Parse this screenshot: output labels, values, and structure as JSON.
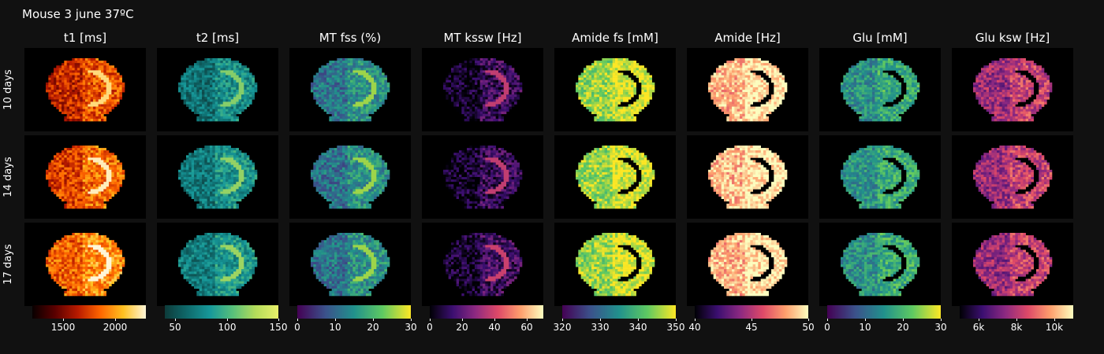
{
  "title": "Mouse 3 june 37ºC",
  "chart_data": {
    "type": "heatmap",
    "title": "Mouse 3 june 37ºC",
    "rows": [
      "10 days",
      "14 days",
      "17 days"
    ],
    "columns": [
      {
        "name": "t1 [ms]",
        "colormap": "hot",
        "range": [
          1200,
          2300
        ],
        "ticks": [
          "1500",
          "2000"
        ],
        "tick_values": [
          1500,
          2000
        ],
        "colors": [
          "#080000",
          "#5a0000",
          "#b81a00",
          "#ff6600",
          "#ffc020",
          "#fff6d8"
        ]
      },
      {
        "name": "t2 [ms]",
        "colormap": "viridis",
        "range": [
          40,
          150
        ],
        "ticks": [
          "50",
          "100",
          "150"
        ],
        "tick_values": [
          50,
          100,
          150
        ],
        "colors": [
          "#0d3b3a",
          "#0f6a6c",
          "#17999a",
          "#58c07a",
          "#b4dc5a",
          "#e8f06a"
        ]
      },
      {
        "name": "MT fss (%)",
        "colormap": "viridis",
        "range": [
          0,
          30
        ],
        "ticks": [
          "0",
          "10",
          "20",
          "30"
        ],
        "tick_values": [
          0,
          10,
          20,
          30
        ],
        "colors": [
          "#440154",
          "#3b528b",
          "#21918c",
          "#5ec962",
          "#fde725"
        ]
      },
      {
        "name": "MT kssw [Hz]",
        "colormap": "magma",
        "range": [
          0,
          70
        ],
        "ticks": [
          "0",
          "20",
          "40",
          "60"
        ],
        "tick_values": [
          0,
          20,
          40,
          60
        ],
        "colors": [
          "#000004",
          "#3b0f70",
          "#8c2981",
          "#de4968",
          "#fe9f6d",
          "#fcfdbf"
        ]
      },
      {
        "name": "Amide fs [mM]",
        "colormap": "viridis",
        "range": [
          320,
          350
        ],
        "ticks": [
          "320",
          "330",
          "340",
          "350"
        ],
        "tick_values": [
          320,
          330,
          340,
          350
        ],
        "colors": [
          "#440154",
          "#3b528b",
          "#21918c",
          "#5ec962",
          "#fde725"
        ]
      },
      {
        "name": "Amide [Hz]",
        "colormap": "magma",
        "range": [
          40,
          50
        ],
        "ticks": [
          "40",
          "45",
          "50"
        ],
        "tick_values": [
          40,
          45,
          50
        ],
        "colors": [
          "#000004",
          "#3b0f70",
          "#8c2981",
          "#de4968",
          "#fe9f6d",
          "#fcfdbf"
        ]
      },
      {
        "name": "Glu [mM]",
        "colormap": "viridis",
        "range": [
          0,
          30
        ],
        "ticks": [
          "0",
          "10",
          "20",
          "30"
        ],
        "tick_values": [
          0,
          10,
          20,
          30
        ],
        "colors": [
          "#440154",
          "#3b528b",
          "#21918c",
          "#5ec962",
          "#fde725"
        ]
      },
      {
        "name": "Glu ksw [Hz]",
        "colormap": "magma",
        "range": [
          5000,
          11000
        ],
        "ticks": [
          "6k",
          "8k",
          "10k"
        ],
        "tick_values": [
          6000,
          8000,
          10000
        ],
        "colors": [
          "#000004",
          "#3b0f70",
          "#8c2981",
          "#de4968",
          "#fe9f6d",
          "#fcfdbf"
        ]
      }
    ],
    "dominant_values": [
      [
        0.55,
        0.62,
        0.7
      ],
      [
        0.35,
        0.38,
        0.4
      ],
      [
        0.5,
        0.5,
        0.5
      ],
      [
        0.18,
        0.18,
        0.2
      ],
      [
        0.96,
        0.96,
        0.95
      ],
      [
        0.97,
        0.97,
        0.97
      ],
      [
        0.62,
        0.62,
        0.62
      ],
      [
        0.55,
        0.55,
        0.55
      ]
    ]
  }
}
